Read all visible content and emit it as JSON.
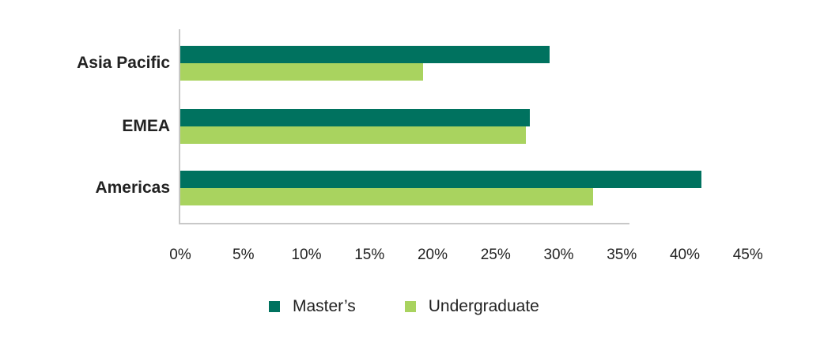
{
  "chart_data": {
    "type": "bar",
    "orientation": "horizontal",
    "title": "",
    "xlabel": "",
    "ylabel": "",
    "categories": [
      "Asia Pacific",
      "EMEA",
      "Americas"
    ],
    "series": [
      {
        "name": "Master’s",
        "color": "#00725f",
        "values": [
          29.2,
          27.6,
          41.2
        ]
      },
      {
        "name": "Undergraduate",
        "color": "#a9d35f",
        "values": [
          19.2,
          27.3,
          32.6
        ]
      }
    ],
    "xlim": [
      0,
      45
    ],
    "x_ticks": [
      "0%",
      "5%",
      "10%",
      "15%",
      "20%",
      "25%",
      "30%",
      "35%",
      "40%",
      "45%"
    ],
    "grid": false,
    "legend_position": "bottom"
  },
  "legend": {
    "items": [
      {
        "label": "Master’s",
        "color": "#00725f"
      },
      {
        "label": "Undergraduate",
        "color": "#a9d35f"
      }
    ]
  }
}
